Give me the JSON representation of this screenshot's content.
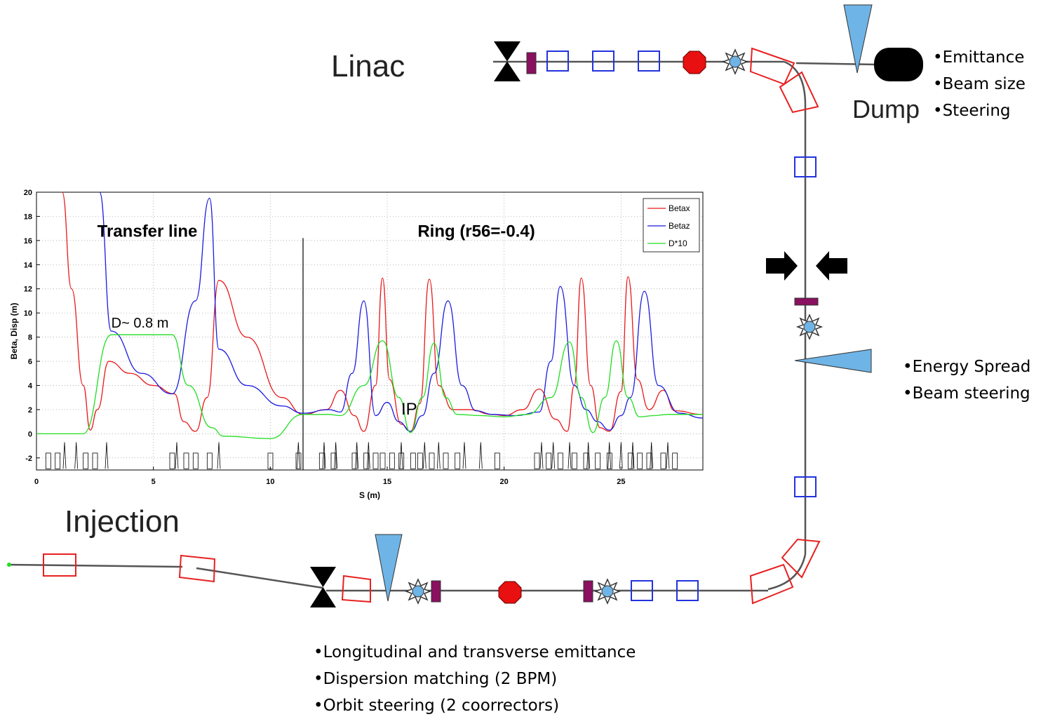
{
  "labels": {
    "linac": "Linac",
    "injection": "Injection",
    "dump": "Dump"
  },
  "notes": {
    "dump_side": [
      "Emittance",
      "Beam size",
      "Steering"
    ],
    "right_side": [
      "Energy Spread",
      "Beam steering"
    ],
    "bottom": [
      "Longitudinal and transverse emittance",
      "Dispersion matching (2 BPM)",
      "Orbit steering (2 coorrectors)"
    ]
  },
  "colors": {
    "betax": "#e8191b",
    "betaz": "#1b1be0",
    "dispersion": "#22dd22",
    "magnet": "#e82020",
    "quad": "#2233dd",
    "screen": "#8a1060",
    "target_fill": "#6fb4e6",
    "line": "#555555"
  },
  "chart_data": {
    "type": "line",
    "xlabel": "S (m)",
    "ylabel": "Beta, Disp (m)",
    "xlim": [
      0,
      28.5
    ],
    "ylim": [
      -3,
      20
    ],
    "xticks": [
      0,
      5,
      10,
      15,
      20,
      25
    ],
    "yticks": [
      -2,
      0,
      2,
      4,
      6,
      8,
      10,
      12,
      14,
      16,
      18,
      20
    ],
    "grid": true,
    "legend_position": "top-right",
    "divider_x": 11.4,
    "annotations": {
      "transfer_line": "Transfer line",
      "ring": "Ring (r56=-0.4)",
      "dispersion_note": "D~ 0.8 m",
      "ip": "IP"
    },
    "series": [
      {
        "name": "Betax",
        "x": [
          1.1,
          1.5,
          2.0,
          2.3,
          2.6,
          3.1,
          4.0,
          5.0,
          5.9,
          6.3,
          6.8,
          7.3,
          7.8,
          9.0,
          10.5,
          11.4,
          12.4,
          13.0,
          13.6,
          14.0,
          14.5,
          14.8,
          15.1,
          15.6,
          16.0,
          16.4,
          16.8,
          17.2,
          17.8,
          18.5,
          19.5,
          20.0,
          20.8,
          21.5,
          22.2,
          22.7,
          23.0,
          23.3,
          23.7,
          24.1,
          24.5,
          25.0,
          25.3,
          25.7,
          26.2,
          26.8,
          27.3,
          28.5
        ],
        "y": [
          20,
          12,
          4.0,
          0.3,
          2.0,
          6.0,
          5.0,
          4.0,
          3.3,
          1.0,
          0.2,
          3.0,
          12.7,
          8.0,
          3.0,
          1.6,
          2.0,
          3.6,
          1.5,
          0.2,
          4.0,
          12.9,
          4.5,
          0.8,
          0.2,
          2.5,
          12.8,
          4.0,
          2.0,
          2.0,
          1.6,
          1.5,
          2.0,
          3.7,
          1.2,
          0.2,
          4.0,
          12.9,
          4.0,
          0.5,
          0.2,
          3.5,
          13.0,
          4.5,
          2.0,
          3.6,
          1.9,
          1.6
        ]
      },
      {
        "name": "Betaz",
        "x": [
          2.7,
          3.2,
          4.5,
          5.8,
          6.8,
          7.4,
          7.8,
          9.0,
          10.5,
          11.4,
          12.5,
          13.0,
          13.5,
          14.0,
          14.5,
          15.0,
          15.5,
          16.0,
          16.5,
          17.0,
          17.6,
          18.2,
          18.8,
          19.5,
          20.5,
          21.5,
          22.0,
          22.4,
          23.0,
          23.5,
          24.0,
          24.5,
          25.0,
          25.4,
          26.0,
          26.6,
          27.5,
          28.5
        ],
        "y": [
          20,
          8.5,
          5.0,
          3.3,
          11.0,
          19.5,
          7.0,
          4.0,
          2.3,
          1.7,
          2.0,
          1.8,
          5.0,
          11.0,
          1.5,
          2.6,
          1.0,
          0.2,
          1.5,
          5.0,
          11.0,
          4.0,
          1.9,
          1.6,
          1.5,
          1.8,
          6.0,
          12.2,
          4.0,
          2.0,
          1.0,
          0.3,
          1.5,
          3.0,
          11.8,
          4.0,
          1.7,
          1.3
        ]
      },
      {
        "name": "D*10",
        "x": [
          0,
          2.0,
          3.2,
          5.8,
          6.5,
          7.5,
          8.0,
          10.0,
          11.4,
          12.5,
          13.0,
          14.0,
          14.8,
          15.5,
          16.0,
          16.5,
          17.0,
          17.5,
          18.0,
          19.0,
          20.0,
          21.0,
          22.0,
          22.8,
          23.3,
          23.8,
          24.3,
          24.8,
          25.3,
          25.8,
          26.4,
          27.0,
          28.5
        ],
        "y": [
          0,
          0,
          8.2,
          8.2,
          4.0,
          0.5,
          -0.2,
          -0.4,
          1.6,
          1.6,
          1.5,
          4.0,
          7.7,
          3.0,
          0.1,
          3.0,
          7.5,
          3.0,
          1.6,
          1.5,
          1.4,
          1.6,
          3.0,
          7.6,
          3.0,
          0.1,
          3.0,
          7.7,
          3.0,
          1.4,
          1.5,
          1.6,
          1.6
        ]
      }
    ]
  }
}
